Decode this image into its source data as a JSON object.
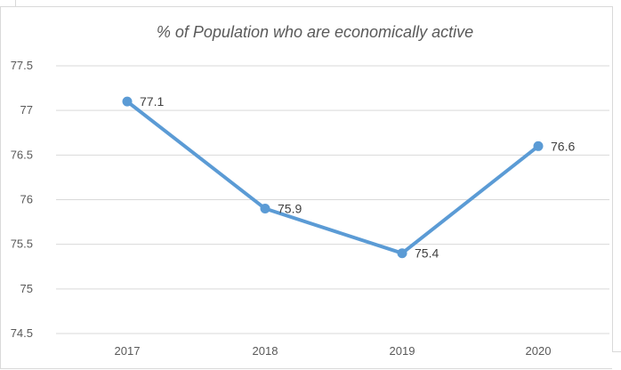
{
  "chart_data": {
    "type": "line",
    "title": "% of Population who are economically active",
    "xlabel": "",
    "ylabel": "",
    "categories": [
      "2017",
      "2018",
      "2019",
      "2020"
    ],
    "series": [
      {
        "values": [
          77.1,
          75.9,
          75.4,
          76.6
        ],
        "color": "#5b9bd5"
      }
    ],
    "data_labels": [
      "77.1",
      "75.9",
      "75.4",
      "76.6"
    ],
    "y_ticks": [
      "77.5",
      "77",
      "76.5",
      "76",
      "75.5",
      "75",
      "74.5"
    ],
    "ylim": [
      74.5,
      77.5
    ],
    "grid": true,
    "legend": "none",
    "colors": {
      "grid": "#d9d9d9",
      "text": "#595959",
      "line": "#5b9bd5"
    }
  }
}
